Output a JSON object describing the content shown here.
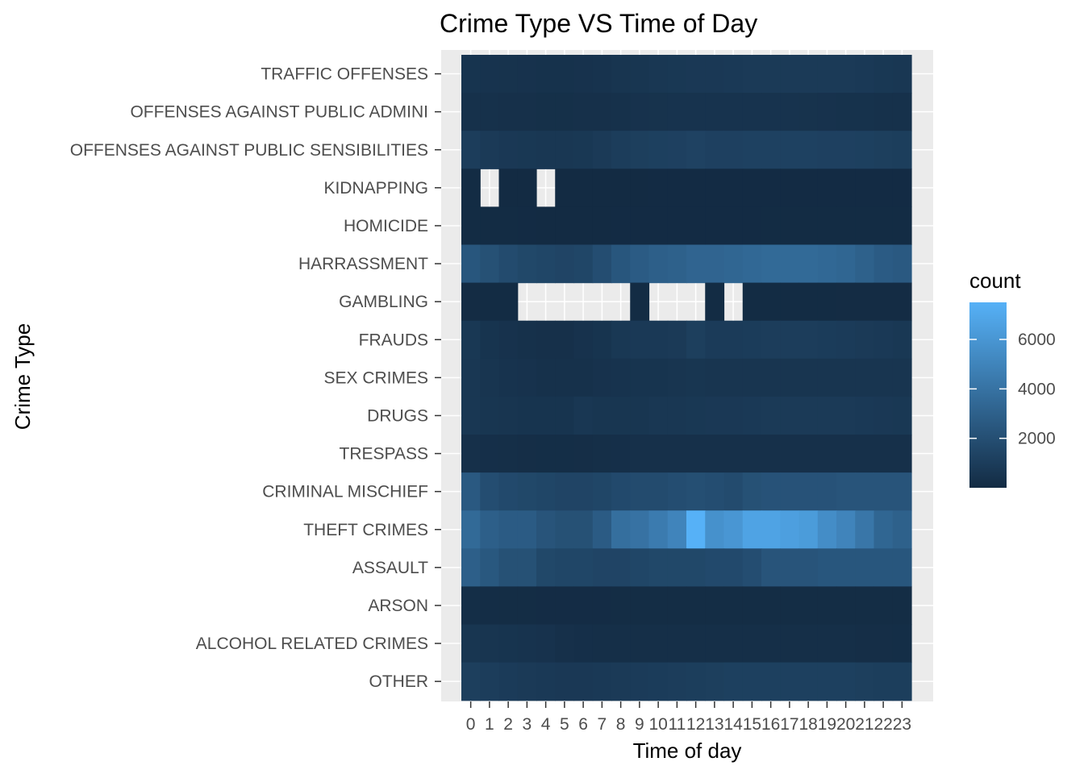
{
  "chart_data": {
    "type": "heatmap",
    "title": "Crime Type VS Time of Day",
    "xlabel": "Time of day",
    "ylabel": "Crime Type",
    "x": [
      "0",
      "1",
      "2",
      "3",
      "4",
      "5",
      "6",
      "7",
      "8",
      "9",
      "10",
      "11",
      "12",
      "13",
      "14",
      "15",
      "16",
      "17",
      "18",
      "19",
      "20",
      "21",
      "22",
      "23"
    ],
    "y": [
      "TRAFFIC OFFENSES",
      "OFFENSES AGAINST PUBLIC ADMINI",
      "OFFENSES AGAINST PUBLIC SENSIBILITIES",
      "KIDNAPPING",
      "HOMICIDE",
      "HARRASSMENT",
      "GAMBLING",
      "FRAUDS",
      "SEX CRIMES",
      "DRUGS",
      "TRESPASS",
      "CRIMINAL MISCHIEF",
      "THEFT CRIMES",
      "ASSAULT",
      "ARSON",
      "ALCOHOL RELATED CRIMES",
      "OTHER"
    ],
    "values": [
      [
        500,
        450,
        420,
        400,
        380,
        380,
        400,
        450,
        550,
        600,
        650,
        700,
        750,
        750,
        800,
        850,
        850,
        850,
        850,
        850,
        850,
        800,
        700,
        650
      ],
      [
        350,
        320,
        300,
        280,
        260,
        260,
        280,
        300,
        350,
        400,
        420,
        450,
        450,
        450,
        450,
        450,
        450,
        450,
        420,
        400,
        380,
        380,
        350,
        350
      ],
      [
        1000,
        850,
        750,
        700,
        650,
        650,
        700,
        850,
        1000,
        1100,
        1150,
        1200,
        1300,
        1200,
        1200,
        1250,
        1250,
        1250,
        1250,
        1200,
        1200,
        1150,
        1100,
        1050
      ],
      [
        30,
        null,
        20,
        20,
        null,
        20,
        20,
        20,
        20,
        20,
        25,
        25,
        25,
        25,
        25,
        25,
        25,
        25,
        25,
        25,
        25,
        25,
        25,
        25
      ],
      [
        40,
        30,
        30,
        25,
        20,
        20,
        20,
        20,
        25,
        25,
        25,
        25,
        25,
        25,
        25,
        25,
        30,
        30,
        30,
        30,
        35,
        35,
        40,
        40
      ],
      [
        2400,
        2100,
        1800,
        1600,
        1500,
        1400,
        1500,
        1900,
        2400,
        2700,
        2900,
        3000,
        3200,
        3200,
        3300,
        3400,
        3500,
        3500,
        3500,
        3400,
        3300,
        3000,
        2700,
        2600
      ],
      [
        60,
        40,
        30,
        null,
        null,
        null,
        null,
        null,
        null,
        30,
        null,
        null,
        null,
        30,
        null,
        40,
        40,
        40,
        40,
        50,
        60,
        60,
        60,
        60
      ],
      [
        700,
        500,
        400,
        350,
        300,
        300,
        400,
        500,
        700,
        800,
        800,
        850,
        1100,
        900,
        900,
        950,
        1000,
        1000,
        1000,
        950,
        900,
        850,
        800,
        700
      ],
      [
        650,
        550,
        450,
        400,
        350,
        350,
        350,
        400,
        450,
        500,
        500,
        550,
        600,
        550,
        550,
        550,
        550,
        550,
        550,
        550,
        550,
        550,
        550,
        550
      ],
      [
        650,
        600,
        550,
        500,
        500,
        500,
        650,
        600,
        600,
        600,
        650,
        650,
        700,
        750,
        750,
        800,
        850,
        850,
        850,
        850,
        850,
        800,
        750,
        700
      ],
      [
        300,
        250,
        200,
        180,
        160,
        160,
        180,
        200,
        250,
        280,
        280,
        300,
        300,
        300,
        300,
        300,
        300,
        300,
        300,
        300,
        300,
        300,
        300,
        300
      ],
      [
        2600,
        1900,
        1700,
        1600,
        1500,
        1400,
        1400,
        1500,
        1700,
        1800,
        1800,
        1900,
        2000,
        1900,
        1800,
        2100,
        2200,
        2200,
        2200,
        2200,
        2300,
        2300,
        2300,
        2300
      ],
      [
        3500,
        2900,
        2700,
        2700,
        2300,
        2100,
        2100,
        2700,
        3800,
        4000,
        4500,
        5000,
        7500,
        5700,
        6000,
        6700,
        6700,
        6500,
        6300,
        5500,
        5000,
        4200,
        3300,
        3000
      ],
      [
        2900,
        2500,
        2100,
        2100,
        1600,
        1500,
        1500,
        1400,
        1400,
        1500,
        1600,
        1600,
        1600,
        1700,
        1700,
        1900,
        2300,
        2300,
        2300,
        2400,
        2400,
        2400,
        2400,
        2400
      ],
      [
        150,
        120,
        100,
        90,
        80,
        80,
        80,
        80,
        90,
        100,
        100,
        100,
        100,
        100,
        100,
        100,
        100,
        100,
        100,
        100,
        100,
        100,
        100,
        100
      ],
      [
        600,
        550,
        500,
        450,
        400,
        300,
        250,
        200,
        200,
        200,
        200,
        200,
        200,
        200,
        200,
        200,
        200,
        200,
        200,
        200,
        200,
        180,
        180,
        160
      ],
      [
        1100,
        1000,
        900,
        850,
        800,
        750,
        750,
        800,
        850,
        900,
        950,
        1000,
        1050,
        1100,
        1150,
        1150,
        1150,
        1150,
        1150,
        1150,
        1150,
        1100,
        1050,
        1050
      ]
    ],
    "missing_fill": "#ebebeb",
    "colorscale": {
      "low": "#132b43",
      "high": "#56b1f7",
      "min": 0,
      "max": 7500
    },
    "legend": {
      "title": "count",
      "ticks": [
        2000,
        4000,
        6000
      ],
      "tick_labels": [
        "2000",
        "4000",
        "6000"
      ],
      "placement": "right"
    },
    "panel_background": "#ebebeb",
    "grid": true
  }
}
